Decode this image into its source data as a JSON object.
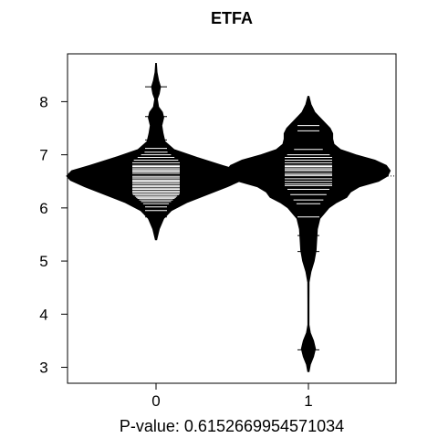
{
  "chart_data": {
    "type": "beanplot",
    "title": "ETFA",
    "xlabel": "P-value: 0.6152669954571034",
    "ylabel": "",
    "categories": [
      "0",
      "1"
    ],
    "yticks": [
      3,
      4,
      5,
      6,
      7,
      8
    ],
    "ylim": [
      2.7,
      8.9
    ],
    "overall_mean": 6.6,
    "grid": false,
    "legend": "none",
    "colors": {
      "bean": "#000000",
      "line": "#ffffff",
      "background": "#ffffff"
    },
    "series": [
      {
        "category": "0",
        "mean": 6.62,
        "min": 5.4,
        "max": 8.72,
        "density": [
          [
            5.4,
            0.005
          ],
          [
            5.6,
            0.025
          ],
          [
            5.8,
            0.06
          ],
          [
            5.95,
            0.12
          ],
          [
            6.1,
            0.24
          ],
          [
            6.25,
            0.4
          ],
          [
            6.4,
            0.56
          ],
          [
            6.52,
            0.67
          ],
          [
            6.6,
            0.7
          ],
          [
            6.7,
            0.66
          ],
          [
            6.8,
            0.52
          ],
          [
            6.95,
            0.32
          ],
          [
            7.1,
            0.14
          ],
          [
            7.25,
            0.07
          ],
          [
            7.4,
            0.055
          ],
          [
            7.55,
            0.045
          ],
          [
            7.7,
            0.06
          ],
          [
            7.8,
            0.05
          ],
          [
            7.9,
            0.02
          ],
          [
            8.05,
            0.01
          ],
          [
            8.15,
            0.025
          ],
          [
            8.28,
            0.035
          ],
          [
            8.4,
            0.02
          ],
          [
            8.55,
            0.008
          ],
          [
            8.72,
            0.003
          ]
        ],
        "observations": [
          5.83,
          5.95,
          6.02,
          6.08,
          6.12,
          6.15,
          6.18,
          6.2,
          6.22,
          6.25,
          6.27,
          6.3,
          6.32,
          6.35,
          6.37,
          6.4,
          6.42,
          6.45,
          6.48,
          6.5,
          6.52,
          6.55,
          6.58,
          6.6,
          6.62,
          6.65,
          6.68,
          6.7,
          6.72,
          6.75,
          6.78,
          6.8,
          6.85,
          6.9,
          6.95,
          7.0,
          7.05,
          7.12,
          7.2,
          7.28,
          7.72,
          8.28
        ]
      },
      {
        "category": "1",
        "mean": 6.58,
        "min": 2.92,
        "max": 8.1,
        "density": [
          [
            2.92,
            0.005
          ],
          [
            3.05,
            0.015
          ],
          [
            3.2,
            0.04
          ],
          [
            3.35,
            0.055
          ],
          [
            3.5,
            0.04
          ],
          [
            3.65,
            0.015
          ],
          [
            3.8,
            0.004
          ],
          [
            4.2,
            0.004
          ],
          [
            4.6,
            0.005
          ],
          [
            4.8,
            0.02
          ],
          [
            5.0,
            0.045
          ],
          [
            5.2,
            0.06
          ],
          [
            5.4,
            0.065
          ],
          [
            5.6,
            0.07
          ],
          [
            5.8,
            0.09
          ],
          [
            6.0,
            0.16
          ],
          [
            6.1,
            0.22
          ],
          [
            6.2,
            0.3
          ],
          [
            6.3,
            0.33
          ],
          [
            6.4,
            0.4
          ],
          [
            6.5,
            0.55
          ],
          [
            6.6,
            0.62
          ],
          [
            6.7,
            0.64
          ],
          [
            6.8,
            0.61
          ],
          [
            6.9,
            0.52
          ],
          [
            7.0,
            0.37
          ],
          [
            7.1,
            0.25
          ],
          [
            7.2,
            0.2
          ],
          [
            7.3,
            0.19
          ],
          [
            7.4,
            0.19
          ],
          [
            7.5,
            0.17
          ],
          [
            7.6,
            0.13
          ],
          [
            7.7,
            0.09
          ],
          [
            7.8,
            0.05
          ],
          [
            7.95,
            0.02
          ],
          [
            8.1,
            0.004
          ]
        ],
        "observations": [
          3.33,
          5.18,
          5.48,
          5.83,
          6.08,
          6.15,
          6.25,
          6.35,
          6.42,
          6.45,
          6.5,
          6.55,
          6.6,
          6.62,
          6.65,
          6.7,
          6.72,
          6.75,
          6.78,
          6.8,
          6.85,
          6.9,
          6.95,
          7.0,
          7.1,
          7.45,
          7.55
        ]
      }
    ]
  }
}
